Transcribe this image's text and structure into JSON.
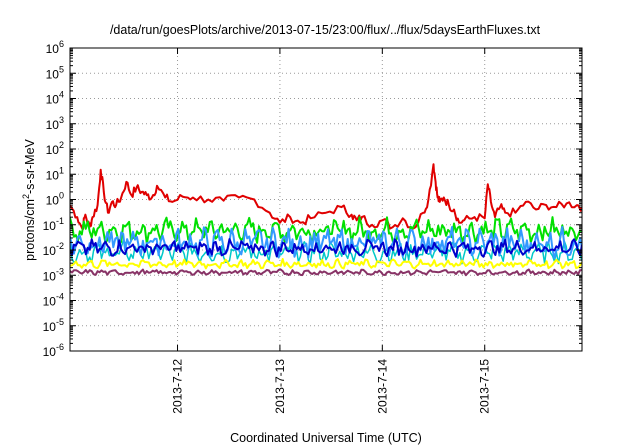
{
  "chart_data": {
    "type": "line",
    "title": "/data/run/goesPlots/archive/2013-07-15/23:00/flux/../flux/5daysEarthFluxes.txt",
    "xlabel": "Coordinated Universal Time (UTC)",
    "ylabel": {
      "base": "protons/cm",
      "sup": "2",
      "rest": "-s-sr-MeV"
    },
    "yscale": "log",
    "ylim_exp": [
      -6,
      6
    ],
    "y_ticks": [
      {
        "exp": -6,
        "label": "10",
        "sup": "-6"
      },
      {
        "exp": -5,
        "label": "10",
        "sup": "-5"
      },
      {
        "exp": -4,
        "label": "10",
        "sup": "-4"
      },
      {
        "exp": -3,
        "label": "10",
        "sup": "-3"
      },
      {
        "exp": -2,
        "label": "10",
        "sup": "-2"
      },
      {
        "exp": -1,
        "label": "10",
        "sup": "-1"
      },
      {
        "exp": 0,
        "label": "10",
        "sup": "0"
      },
      {
        "exp": 1,
        "label": "10",
        "sup": "1"
      },
      {
        "exp": 2,
        "label": "10",
        "sup": "2"
      },
      {
        "exp": 3,
        "label": "10",
        "sup": "3"
      },
      {
        "exp": 4,
        "label": "10",
        "sup": "4"
      },
      {
        "exp": 5,
        "label": "10",
        "sup": "5"
      },
      {
        "exp": 6,
        "label": "10",
        "sup": "6"
      }
    ],
    "xlim_days": [
      -1.05,
      3.95
    ],
    "x_ticks": [
      {
        "day": 0,
        "label": "2013-7-12"
      },
      {
        "day": 1,
        "label": "2013-7-13"
      },
      {
        "day": 2,
        "label": "2013-7-14"
      },
      {
        "day": 3,
        "label": "2013-7-15"
      }
    ],
    "grid": true,
    "series": [
      {
        "color": "#e00000",
        "width": 2,
        "x": [
          -1.05,
          -0.98,
          -0.93,
          -0.9,
          -0.86,
          -0.83,
          -0.78,
          -0.75,
          -0.72,
          -0.68,
          -0.64,
          -0.6,
          -0.55,
          -0.5,
          -0.45,
          -0.4,
          -0.35,
          -0.3,
          -0.25,
          -0.2,
          -0.12,
          -0.05,
          0.05,
          0.15,
          0.3,
          0.45,
          0.6,
          0.75,
          0.9,
          1.0,
          1.1,
          1.2,
          1.3,
          1.45,
          1.6,
          1.7,
          1.75,
          1.8,
          1.9,
          2.0,
          2.1,
          2.2,
          2.3,
          2.4,
          2.45,
          2.5,
          2.52,
          2.54,
          2.56,
          2.6,
          2.65,
          2.7,
          2.75,
          2.8,
          2.9,
          3.0,
          3.03,
          3.06,
          3.1,
          3.15,
          3.2,
          3.3,
          3.4,
          3.5,
          3.6,
          3.7,
          3.8,
          3.9,
          3.95
        ],
        "y": [
          0.6,
          0.2,
          0.07,
          0.25,
          0.08,
          0.2,
          0.6,
          15,
          2,
          0.3,
          0.8,
          0.6,
          1.2,
          5,
          1.5,
          3,
          2,
          1.5,
          1.2,
          3.5,
          1.2,
          0.8,
          1.3,
          1.2,
          1.0,
          0.9,
          1.2,
          1.0,
          0.3,
          0.12,
          0.2,
          0.12,
          0.18,
          0.3,
          0.5,
          0.25,
          0.15,
          0.2,
          0.1,
          0.15,
          0.08,
          0.18,
          0.07,
          0.3,
          1.0,
          25,
          5,
          1.2,
          0.8,
          1.2,
          0.6,
          0.4,
          0.12,
          0.15,
          0.2,
          0.18,
          4,
          0.8,
          0.2,
          0.5,
          0.3,
          0.3,
          0.8,
          0.4,
          0.6,
          0.5,
          0.7,
          0.6,
          0.5
        ],
        "jitter": 0.35
      },
      {
        "color": "#00e000",
        "width": 2,
        "value": 0.06,
        "jitter": 0.7
      },
      {
        "color": "#00c8c8",
        "width": 1.5,
        "value": 0.008,
        "jitter": 0.6
      },
      {
        "color": "#3399ff",
        "width": 2,
        "value": 0.02,
        "jitter": 0.8
      },
      {
        "color": "#0000cc",
        "width": 2,
        "value": 0.012,
        "jitter": 0.45
      },
      {
        "color": "#ffff00",
        "width": 2,
        "value": 0.0028,
        "jitter": 0.25
      },
      {
        "color": "#883366",
        "width": 2,
        "value": 0.0013,
        "jitter": 0.15
      }
    ]
  }
}
